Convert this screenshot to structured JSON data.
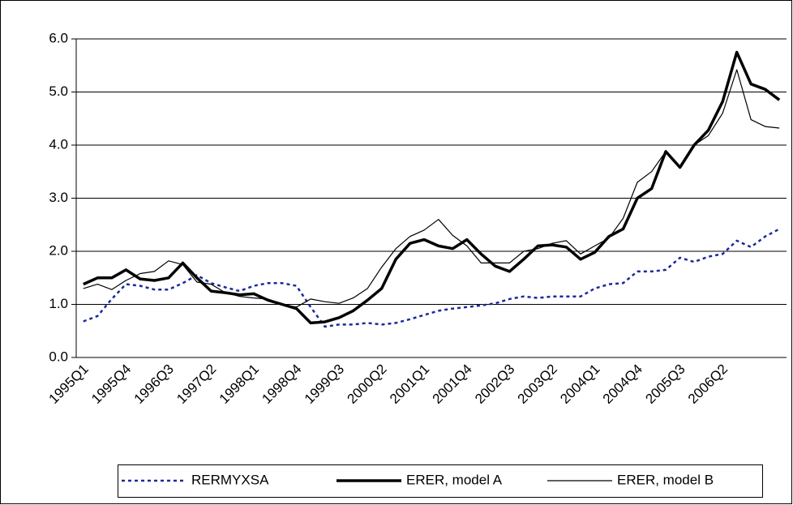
{
  "chart_data": {
    "type": "line",
    "categories": [
      "1995Q1",
      null,
      null,
      "1995Q4",
      null,
      null,
      "1996Q3",
      null,
      null,
      "1997Q2",
      null,
      null,
      "1998Q1",
      null,
      null,
      "1998Q4",
      null,
      null,
      "1999Q3",
      null,
      null,
      "2000Q2",
      null,
      null,
      "2001Q1",
      null,
      null,
      "2001Q4",
      null,
      null,
      "2002Q3",
      null,
      null,
      "2003Q2",
      null,
      null,
      "2004Q1",
      null,
      null,
      "2004Q4",
      null,
      null,
      "2005Q3",
      null,
      null,
      "2006Q2",
      null,
      null,
      null,
      null
    ],
    "series": [
      {
        "name": "RERMYXSA",
        "color": "#1a2a9a",
        "line_style": "dotted",
        "line_width": 2.5,
        "values": [
          0.68,
          0.78,
          1.1,
          1.38,
          1.35,
          1.28,
          1.28,
          1.4,
          1.55,
          1.4,
          1.32,
          1.25,
          1.35,
          1.4,
          1.4,
          1.35,
          0.95,
          0.58,
          0.62,
          0.62,
          0.65,
          0.62,
          0.65,
          0.72,
          0.8,
          0.88,
          0.92,
          0.95,
          0.98,
          1.02,
          1.1,
          1.15,
          1.12,
          1.15,
          1.15,
          1.15,
          1.3,
          1.38,
          1.4,
          1.62,
          1.62,
          1.65,
          1.88,
          1.8,
          1.9,
          1.95,
          2.2,
          2.08,
          2.28,
          2.42
        ]
      },
      {
        "name": "ERER, model A",
        "color": "#000000",
        "line_style": "solid",
        "line_width": 3.5,
        "values": [
          1.38,
          1.5,
          1.5,
          1.65,
          1.48,
          1.45,
          1.5,
          1.78,
          1.5,
          1.25,
          1.22,
          1.18,
          1.2,
          1.08,
          1.0,
          0.92,
          0.65,
          0.67,
          0.75,
          0.88,
          1.08,
          1.3,
          1.85,
          2.15,
          2.22,
          2.1,
          2.05,
          2.22,
          1.95,
          1.72,
          1.62,
          1.85,
          2.1,
          2.12,
          2.08,
          1.85,
          1.98,
          2.28,
          2.42,
          3.0,
          3.18,
          3.88,
          3.58,
          4.0,
          4.28,
          4.82,
          5.75,
          5.15,
          5.05,
          4.85
        ]
      },
      {
        "name": "ERER, model B",
        "color": "#000000",
        "line_style": "solid",
        "line_width": 1.2,
        "values": [
          1.3,
          1.38,
          1.28,
          1.45,
          1.58,
          1.62,
          1.82,
          1.75,
          1.42,
          1.38,
          1.22,
          1.15,
          1.12,
          1.1,
          1.0,
          0.95,
          1.1,
          1.05,
          1.02,
          1.12,
          1.3,
          1.7,
          2.05,
          2.28,
          2.4,
          2.6,
          2.3,
          2.1,
          1.78,
          1.78,
          1.78,
          2.0,
          2.05,
          2.15,
          2.2,
          1.95,
          2.1,
          2.25,
          2.62,
          3.3,
          3.5,
          3.88,
          3.6,
          4.0,
          4.18,
          4.6,
          5.42,
          4.48,
          4.35,
          4.32
        ]
      }
    ],
    "ylim": [
      0,
      6
    ],
    "yticks": [
      {
        "value": 0,
        "label": "0.0"
      },
      {
        "value": 1,
        "label": "1.0"
      },
      {
        "value": 2,
        "label": "2.0"
      },
      {
        "value": 3,
        "label": "3.0"
      },
      {
        "value": 4,
        "label": "4.0"
      },
      {
        "value": 5,
        "label": "5.0"
      },
      {
        "value": 6,
        "label": "6.0"
      }
    ],
    "grid": true,
    "legend": "bottom"
  }
}
